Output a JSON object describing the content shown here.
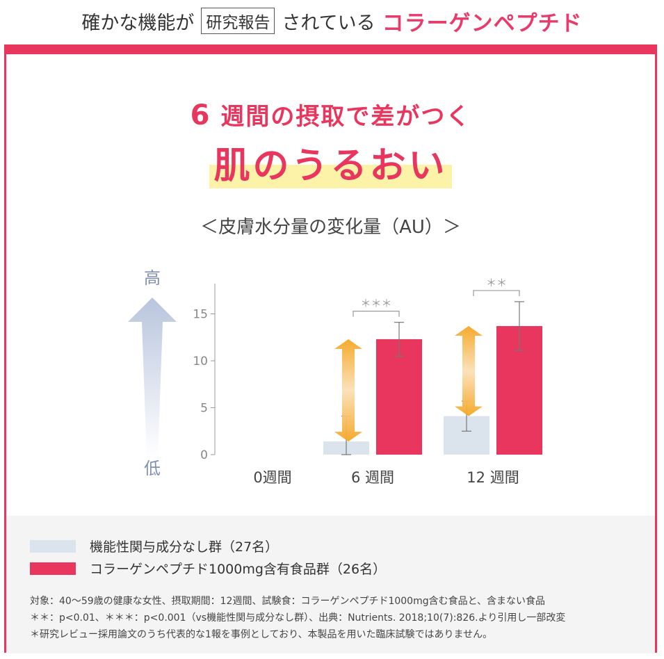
{
  "header": {
    "text1": "確かな機能が",
    "boxed": "研究報告",
    "text2": "されている",
    "brand": "コラーゲンペプチド"
  },
  "headline": {
    "line1_num": "6",
    "line1_rest": "週間の摂取で差がつく",
    "line2": "肌のうるおい"
  },
  "chart_title": "＜皮膚水分量の変化量（AU）＞",
  "scale": {
    "high": "高",
    "low": "低"
  },
  "colors": {
    "accent": "#e8365f",
    "control": "#dbe3ec",
    "arrow": "#f5a623",
    "highlight": "#fdf3a8"
  },
  "chart_data": {
    "type": "bar",
    "title": "＜皮膚水分量の変化量（AU）＞",
    "categories": [
      "0週間",
      "6 週間",
      "12 週間"
    ],
    "yticks": [
      0,
      5,
      10,
      15
    ],
    "ylim": [
      0,
      17.5
    ],
    "series": [
      {
        "name": "機能性関与成分なし群（27名）",
        "color": "#dbe3ec",
        "values": [
          null,
          1.4,
          4.1
        ],
        "errors": [
          null,
          2.7,
          1.6
        ]
      },
      {
        "name": "コラーゲンペプチド1000mg含有食品群（26名）",
        "color": "#e8365f",
        "values": [
          null,
          12.3,
          13.7
        ],
        "errors": [
          null,
          1.8,
          2.6
        ]
      }
    ],
    "significance": [
      "",
      "＊＊＊",
      "＊＊"
    ]
  },
  "legend": [
    {
      "label": "機能性関与成分なし群（27名）",
      "color": "#dbe3ec"
    },
    {
      "label": "コラーゲンペプチド1000mg含有食品群（26名）",
      "color": "#e8365f"
    }
  ],
  "notes": [
    "対象：40〜59歳の健康な女性、摂取期間：12週間、試験食：コラーゲンペプチド1000mg含む食品と、含まない食品",
    "＊＊：p<0.01、＊＊＊：p<0.001（vs機能性関与成分なし群）、出典：Nutrients. 2018;10(7):826.より引用し一部改変",
    "＊研究レビュー採用論文のうち代表的な1報を事例としており、本製品を用いた臨床試験ではありません。"
  ]
}
